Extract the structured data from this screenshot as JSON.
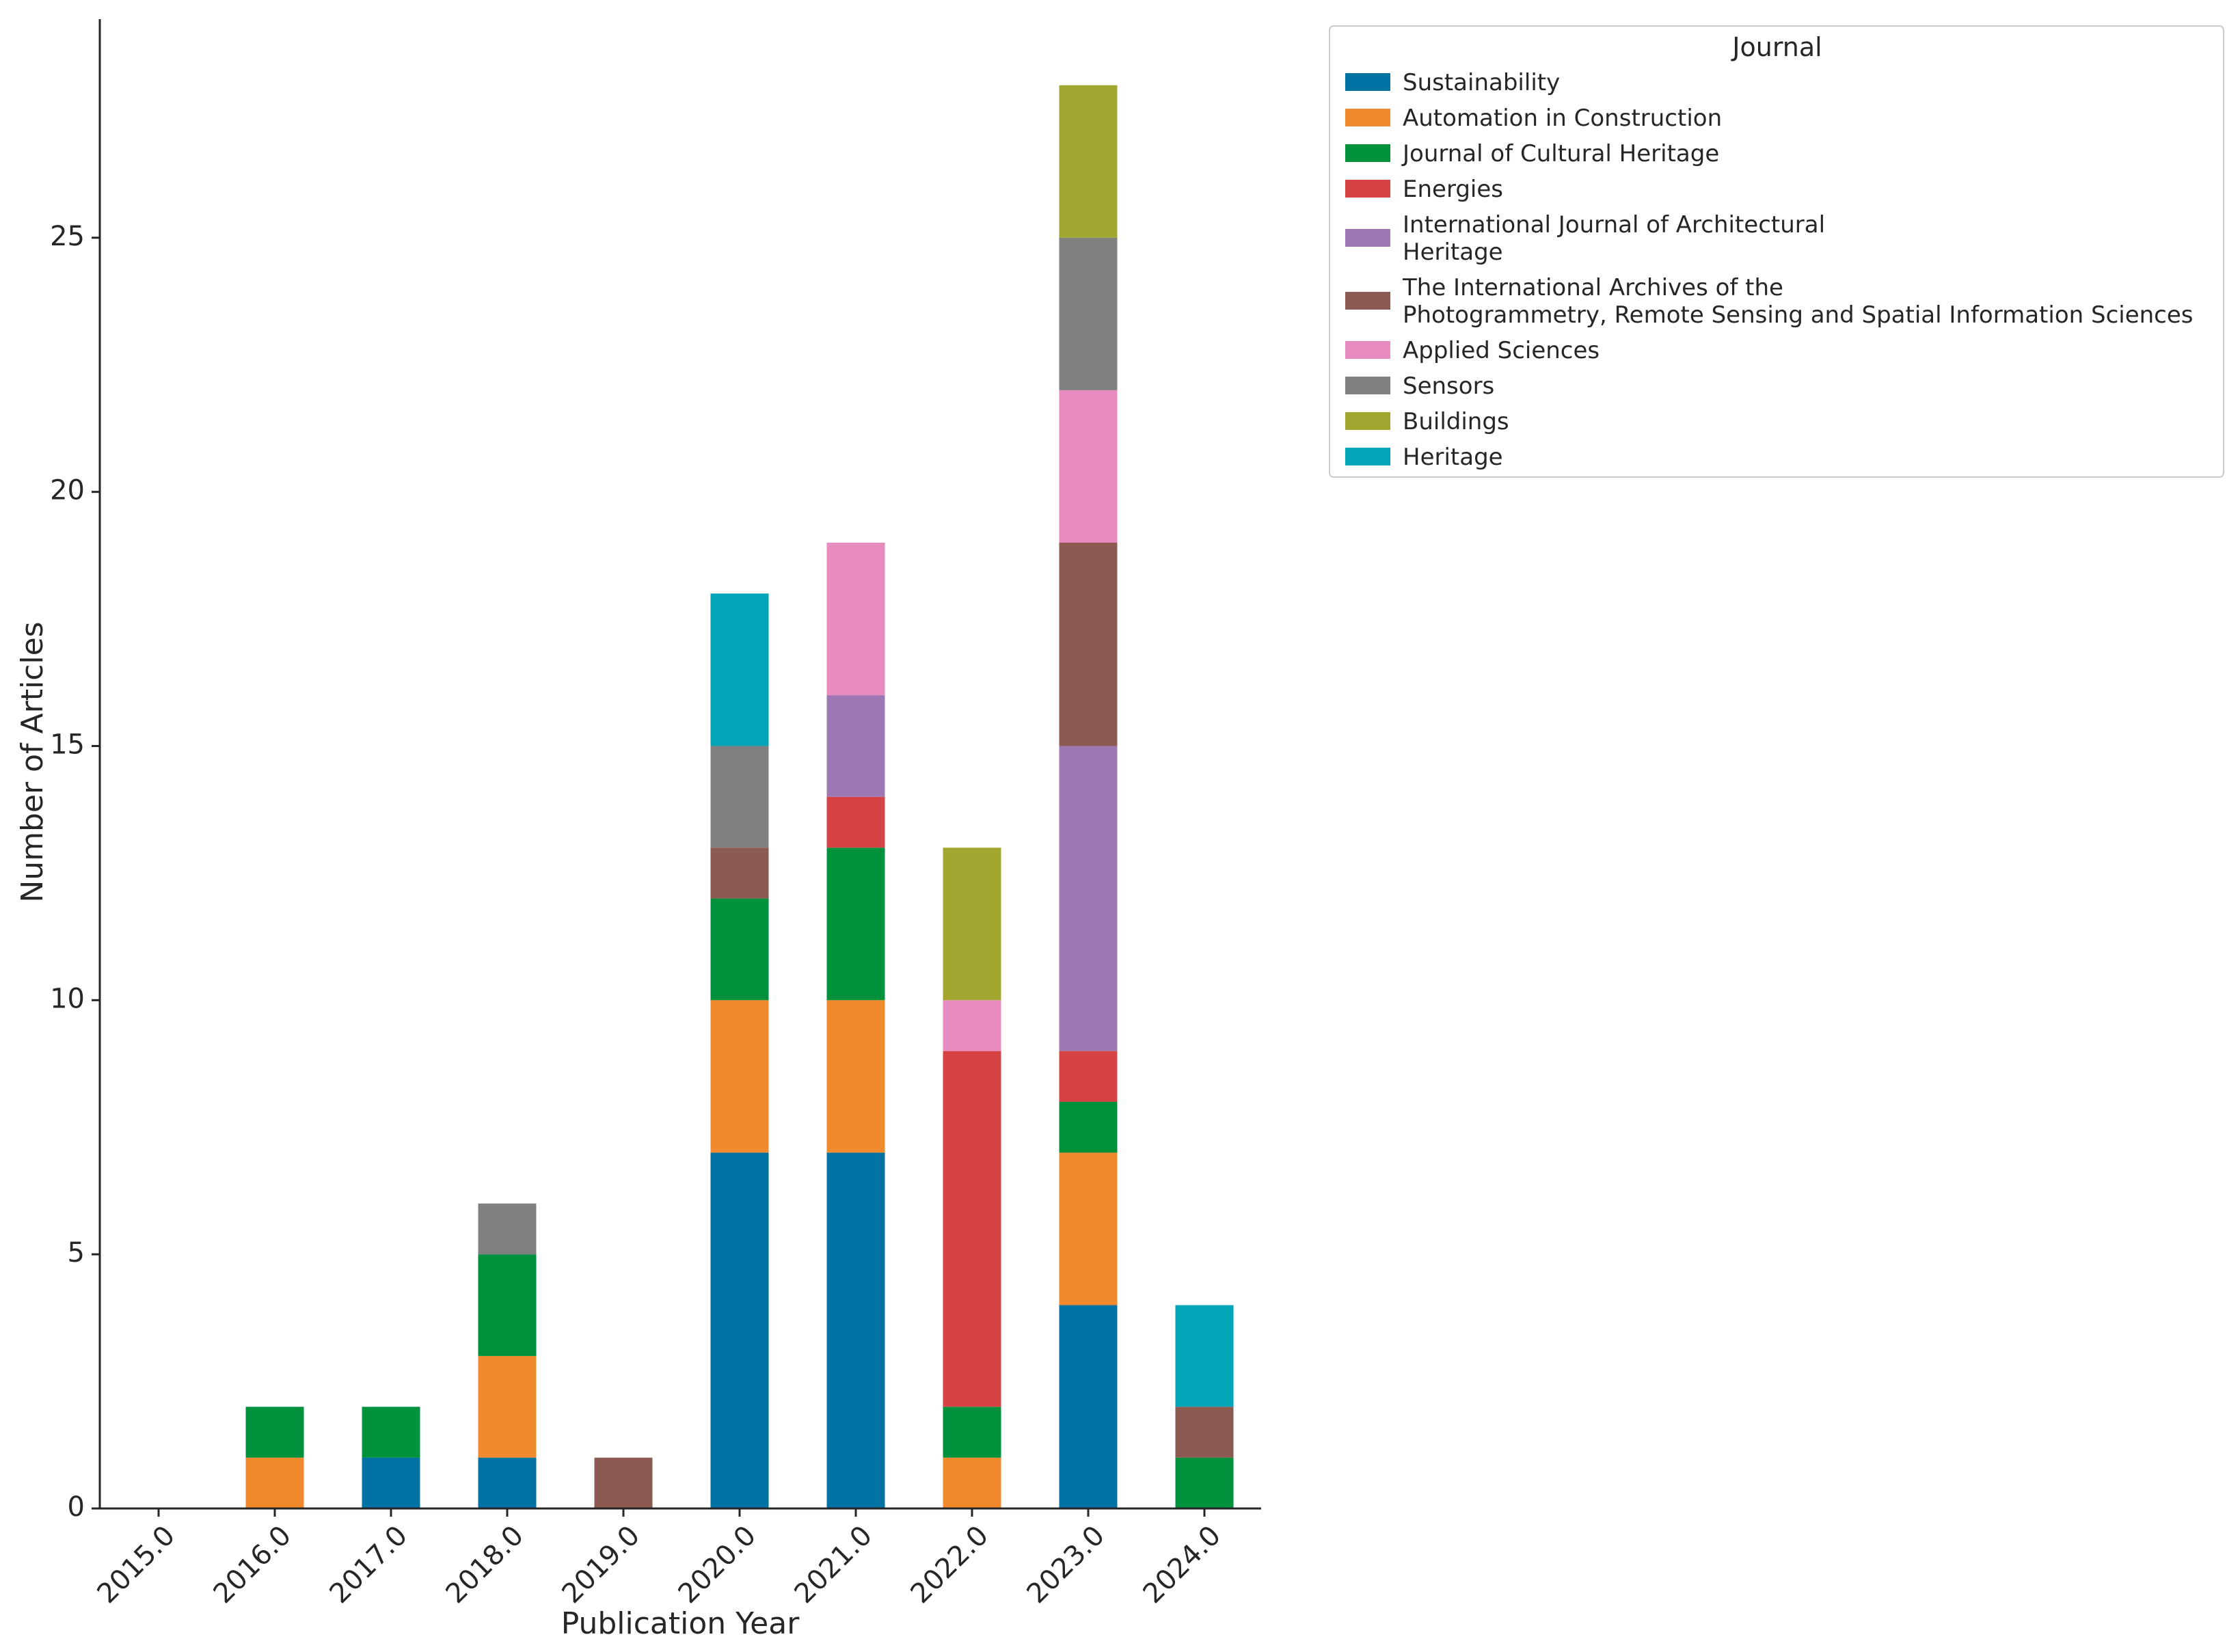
{
  "chart_data": {
    "type": "bar",
    "stacked": true,
    "xlabel": "Publication Year",
    "ylabel": "Number of Articles",
    "ylim": [
      0,
      29.3
    ],
    "yticks": [
      "0",
      "5",
      "10",
      "15",
      "20",
      "25"
    ],
    "categories": [
      "2015.0",
      "2016.0",
      "2017.0",
      "2018.0",
      "2019.0",
      "2020.0",
      "2021.0",
      "2022.0",
      "2023.0",
      "2024.0"
    ],
    "legend": {
      "title": "Journal",
      "placement": "outside top-right"
    },
    "series": [
      {
        "name": "Sustainability",
        "label_lines": [
          "Sustainability"
        ],
        "color": "#0072a3",
        "values": [
          0,
          0,
          1,
          1,
          0,
          7,
          7,
          0,
          4,
          0
        ]
      },
      {
        "name": "Automation in Construction",
        "label_lines": [
          "Automation in Construction"
        ],
        "color": "#f08a2c",
        "values": [
          0,
          1,
          0,
          2,
          0,
          3,
          3,
          1,
          3,
          0
        ]
      },
      {
        "name": "Journal of Cultural Heritage",
        "label_lines": [
          "Journal of Cultural Heritage"
        ],
        "color": "#00913c",
        "values": [
          0,
          1,
          1,
          2,
          0,
          2,
          3,
          1,
          1,
          1
        ]
      },
      {
        "name": "Energies",
        "label_lines": [
          "Energies"
        ],
        "color": "#d64344",
        "values": [
          0,
          0,
          0,
          0,
          0,
          0,
          1,
          7,
          1,
          0
        ]
      },
      {
        "name": "International Journal of Architectural Heritage",
        "label_lines": [
          "International Journal of Architectural",
          "Heritage"
        ],
        "color": "#9d78b4",
        "values": [
          0,
          0,
          0,
          0,
          0,
          0,
          2,
          0,
          6,
          0
        ]
      },
      {
        "name": "The International Archives of the Photogrammetry, Remote Sensing and Spatial Information Sciences",
        "label_lines": [
          "The International Archives of the",
          "Photogrammetry, Remote Sensing and Spatial Information Sciences"
        ],
        "color": "#8c5a51",
        "values": [
          0,
          0,
          0,
          0,
          1,
          1,
          0,
          0,
          4,
          1
        ]
      },
      {
        "name": "Applied Sciences",
        "label_lines": [
          "Applied Sciences"
        ],
        "color": "#e88bbf",
        "values": [
          0,
          0,
          0,
          0,
          0,
          0,
          3,
          1,
          3,
          0
        ]
      },
      {
        "name": "Sensors",
        "label_lines": [
          "Sensors"
        ],
        "color": "#808080",
        "values": [
          0,
          0,
          0,
          1,
          0,
          2,
          0,
          0,
          3,
          0
        ]
      },
      {
        "name": "Buildings",
        "label_lines": [
          "Buildings"
        ],
        "color": "#a3a62e",
        "values": [
          0,
          0,
          0,
          0,
          0,
          0,
          0,
          3,
          3,
          0
        ]
      },
      {
        "name": "Heritage",
        "label_lines": [
          "Heritage"
        ],
        "color": "#00a6b8",
        "values": [
          0,
          0,
          0,
          0,
          0,
          3,
          0,
          0,
          0,
          2
        ]
      }
    ]
  }
}
